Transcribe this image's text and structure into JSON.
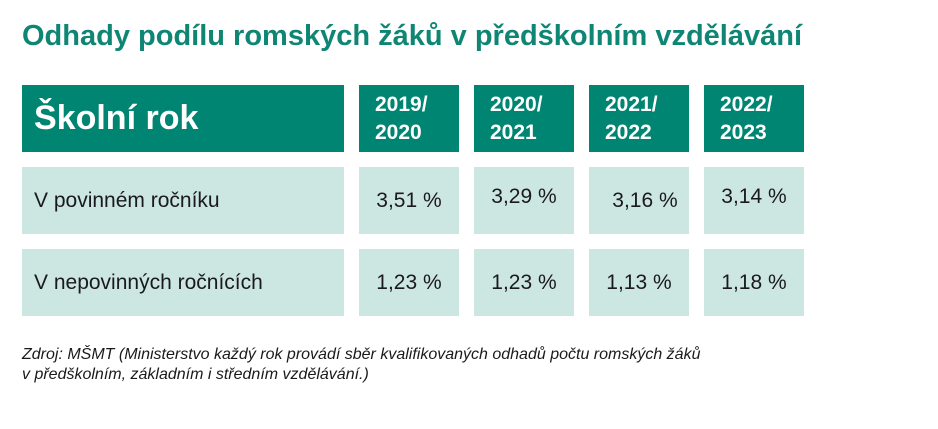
{
  "title": "Odhady podílu romských žáků v předškolním vzdělávání",
  "table": {
    "header_label": "Školní rok",
    "years": [
      {
        "line1": "2019/",
        "line2": "2020"
      },
      {
        "line1": "2020/",
        "line2": "2021"
      },
      {
        "line1": "2021/",
        "line2": "2022"
      },
      {
        "line1": "2022/",
        "line2": "2023"
      }
    ],
    "rows": [
      {
        "label": "V povinném ročníku",
        "values": [
          "3,51 %",
          "3,29 %",
          "3,16 %",
          "3,14 %"
        ]
      },
      {
        "label": "V nepovinných ročnících",
        "values": [
          "1,23 %",
          "1,23 %",
          "1,13 %",
          "1,18 %"
        ]
      }
    ]
  },
  "source": {
    "line1": "Zdroj: MŠMT (Ministerstvo každý rok provádí sběr kvalifikovaných odhadů počtu romských žáků",
    "line2": "v předškolním, základním i středním vzdělávání.)"
  },
  "colors": {
    "accent": "#0f8674",
    "header_bg": "#008572",
    "cell_bg": "#cce6e1"
  }
}
